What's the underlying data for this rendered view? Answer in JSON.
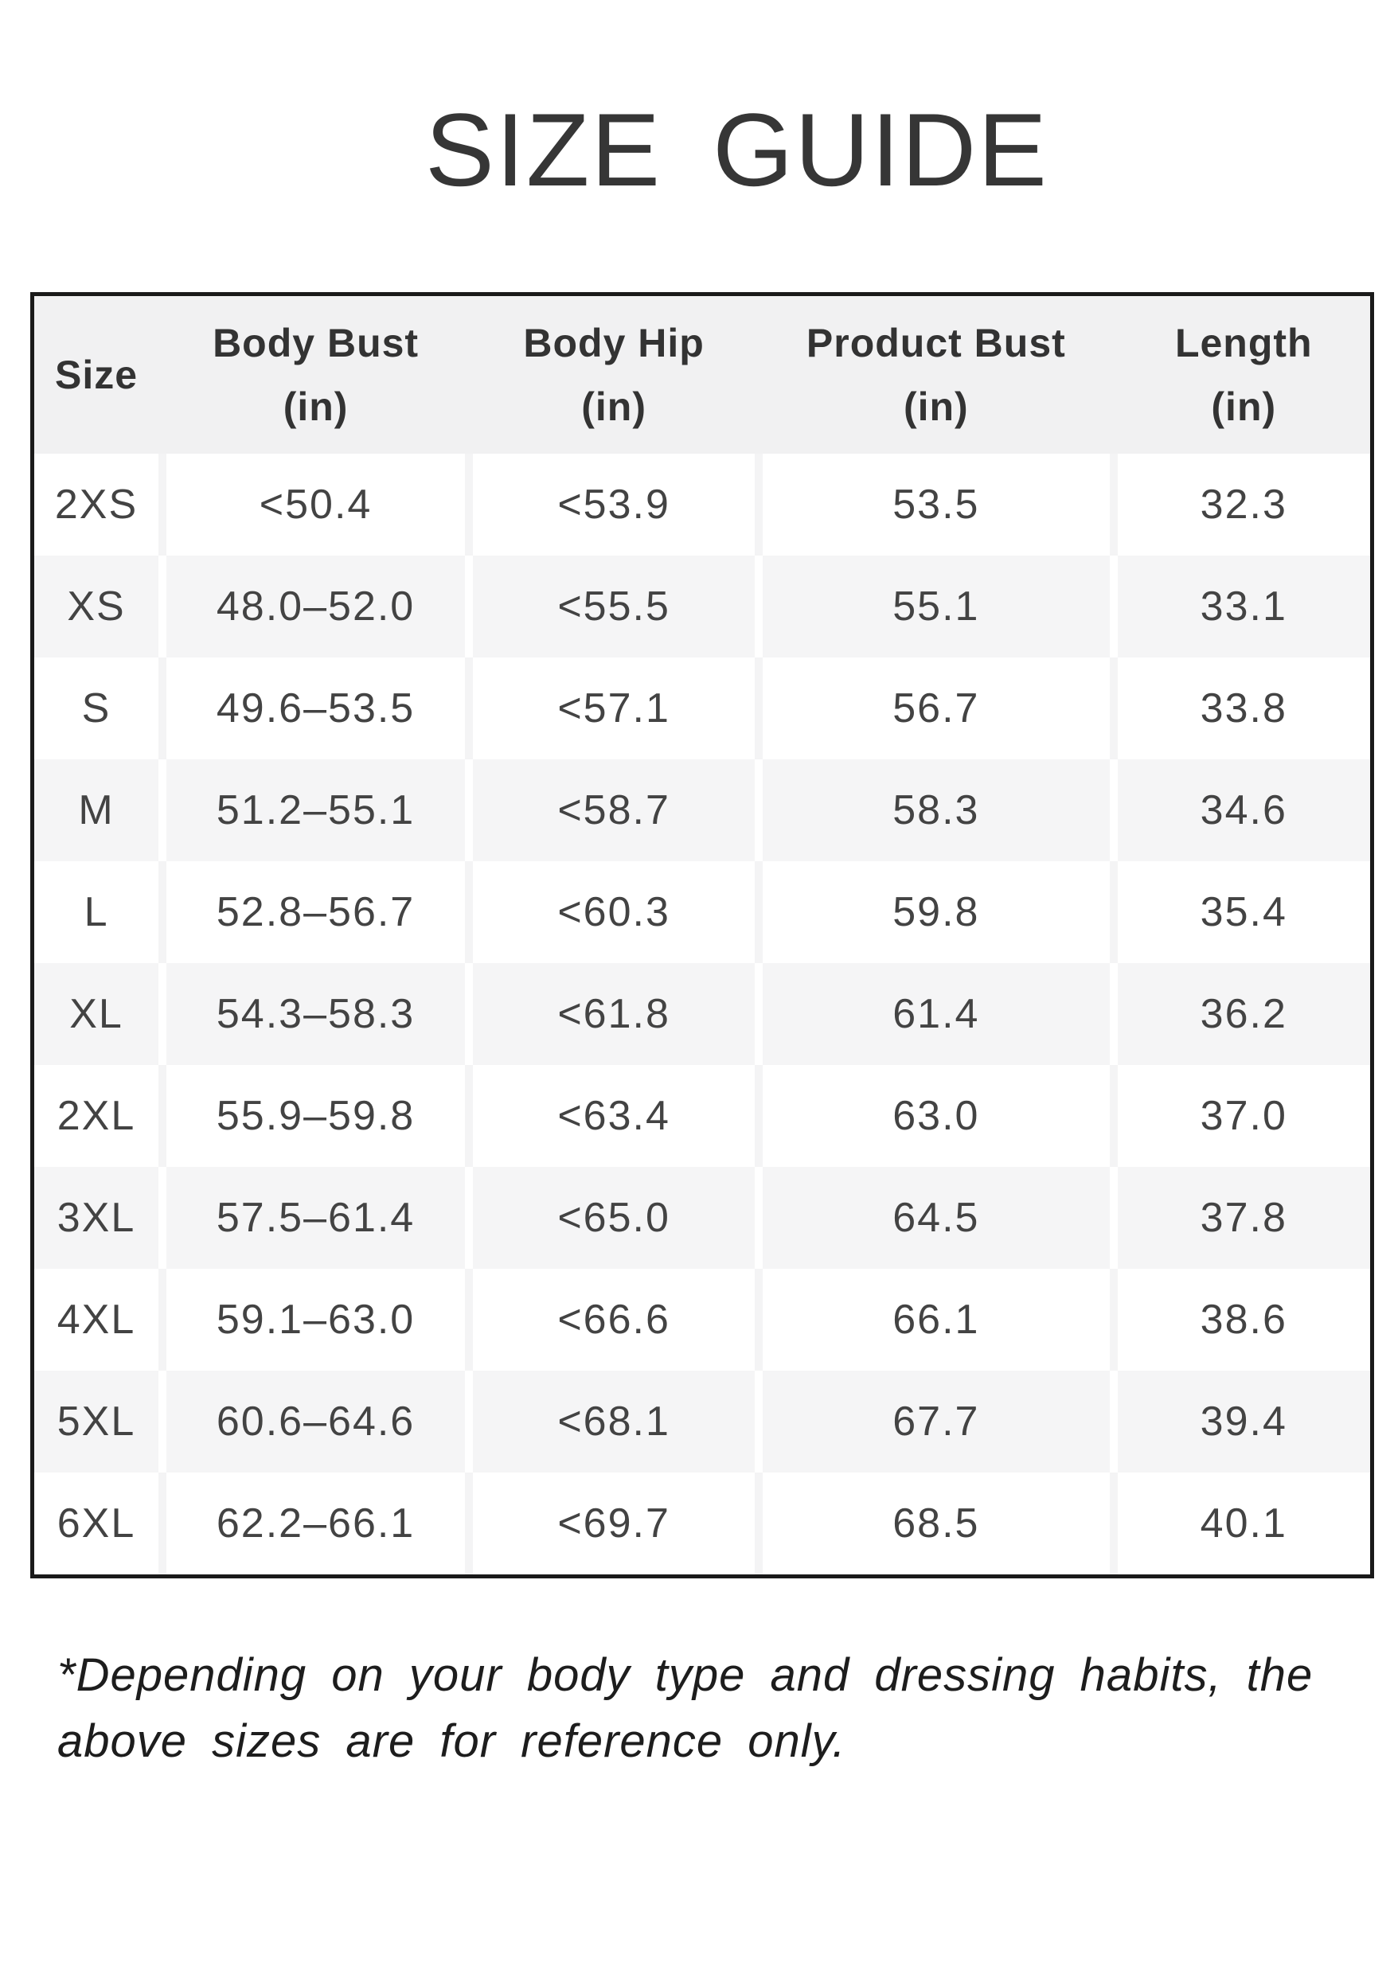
{
  "title": "SIZE GUIDE",
  "table": {
    "columns": [
      {
        "label": "Size",
        "unit": ""
      },
      {
        "label": "Body Bust",
        "unit": "(in)"
      },
      {
        "label": "Body Hip",
        "unit": "(in)"
      },
      {
        "label": "Product Bust",
        "unit": "(in)"
      },
      {
        "label": "Length",
        "unit": "(in)"
      }
    ],
    "rows": [
      [
        "2XS",
        "<50.4",
        "<53.9",
        "53.5",
        "32.3"
      ],
      [
        "XS",
        "48.0–52.0",
        "<55.5",
        "55.1",
        "33.1"
      ],
      [
        "S",
        "49.6–53.5",
        "<57.1",
        "56.7",
        "33.8"
      ],
      [
        "M",
        "51.2–55.1",
        "<58.7",
        "58.3",
        "34.6"
      ],
      [
        "L",
        "52.8–56.7",
        "<60.3",
        "59.8",
        "35.4"
      ],
      [
        "XL",
        "54.3–58.3",
        "<61.8",
        "61.4",
        "36.2"
      ],
      [
        "2XL",
        "55.9–59.8",
        "<63.4",
        "63.0",
        "37.0"
      ],
      [
        "3XL",
        "57.5–61.4",
        "<65.0",
        "64.5",
        "37.8"
      ],
      [
        "4XL",
        "59.1–63.0",
        "<66.6",
        "66.1",
        "38.6"
      ],
      [
        "5XL",
        "60.6–64.6",
        "<68.1",
        "67.7",
        "39.4"
      ],
      [
        "6XL",
        "62.2–66.1",
        "<69.7",
        "68.5",
        "40.1"
      ]
    ]
  },
  "footnote": {
    "lines": [
      "*Depending on your body type and dressing habits, the",
      "above sizes are for reference only."
    ]
  },
  "colors": {
    "border": "#1a1a1a",
    "header_bg": "#f1f1f2",
    "stripe_bg": "#f5f5f6",
    "text": "#434343"
  }
}
